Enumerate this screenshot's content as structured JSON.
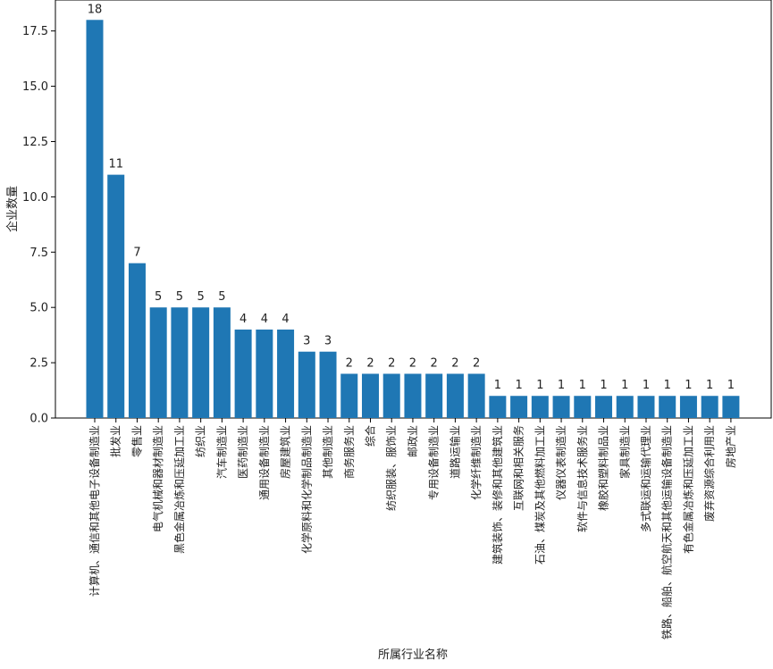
{
  "chart_data": {
    "type": "bar",
    "xlabel": "所属行业名称",
    "ylabel": "企业数量",
    "ylim": [
      0,
      18.9
    ],
    "y_ticks": [
      "0.0",
      "2.5",
      "5.0",
      "7.5",
      "10.0",
      "12.5",
      "15.0",
      "17.5"
    ],
    "y_tick_values": [
      0,
      2.5,
      5,
      7.5,
      10,
      12.5,
      15,
      17.5
    ],
    "grid": false,
    "bar_color": "#1f77b4",
    "categories": [
      "计算机、通信和其他电子设备制造业",
      "批发业",
      "零售业",
      "电气机械和器材制造业",
      "黑色金属冶炼和压延加工业",
      "纺织业",
      "汽车制造业",
      "医药制造业",
      "通用设备制造业",
      "房屋建筑业",
      "化学原料和化学制品制造业",
      "其他制造业",
      "商务服务业",
      "综合",
      "纺织服装、服饰业",
      "邮政业",
      "专用设备制造业",
      "道路运输业",
      "化学纤维制造业",
      "建筑装饰、装修和其他建筑业",
      "互联网和相关服务",
      "石油、煤炭及其他燃料加工业",
      "仪器仪表制造业",
      "软件与信息技术服务业",
      "橡胶和塑料制品业",
      "家具制造业",
      "多式联运和运输代理业",
      "铁路、船舶、航空航天和其他运输设备制造业",
      "有色金属冶炼和压延加工业",
      "废弃资源综合利用业",
      "房地产业"
    ],
    "values": [
      18,
      11,
      7,
      5,
      5,
      5,
      5,
      4,
      4,
      4,
      3,
      3,
      2,
      2,
      2,
      2,
      2,
      2,
      2,
      1,
      1,
      1,
      1,
      1,
      1,
      1,
      1,
      1,
      1,
      1,
      1
    ],
    "data_labels": [
      "18",
      "11",
      "7",
      "5",
      "5",
      "5",
      "5",
      "4",
      "4",
      "4",
      "3",
      "3",
      "2",
      "2",
      "2",
      "2",
      "2",
      "2",
      "2",
      "1",
      "1",
      "1",
      "1",
      "1",
      "1",
      "1",
      "1",
      "1",
      "1",
      "1",
      "1"
    ]
  }
}
